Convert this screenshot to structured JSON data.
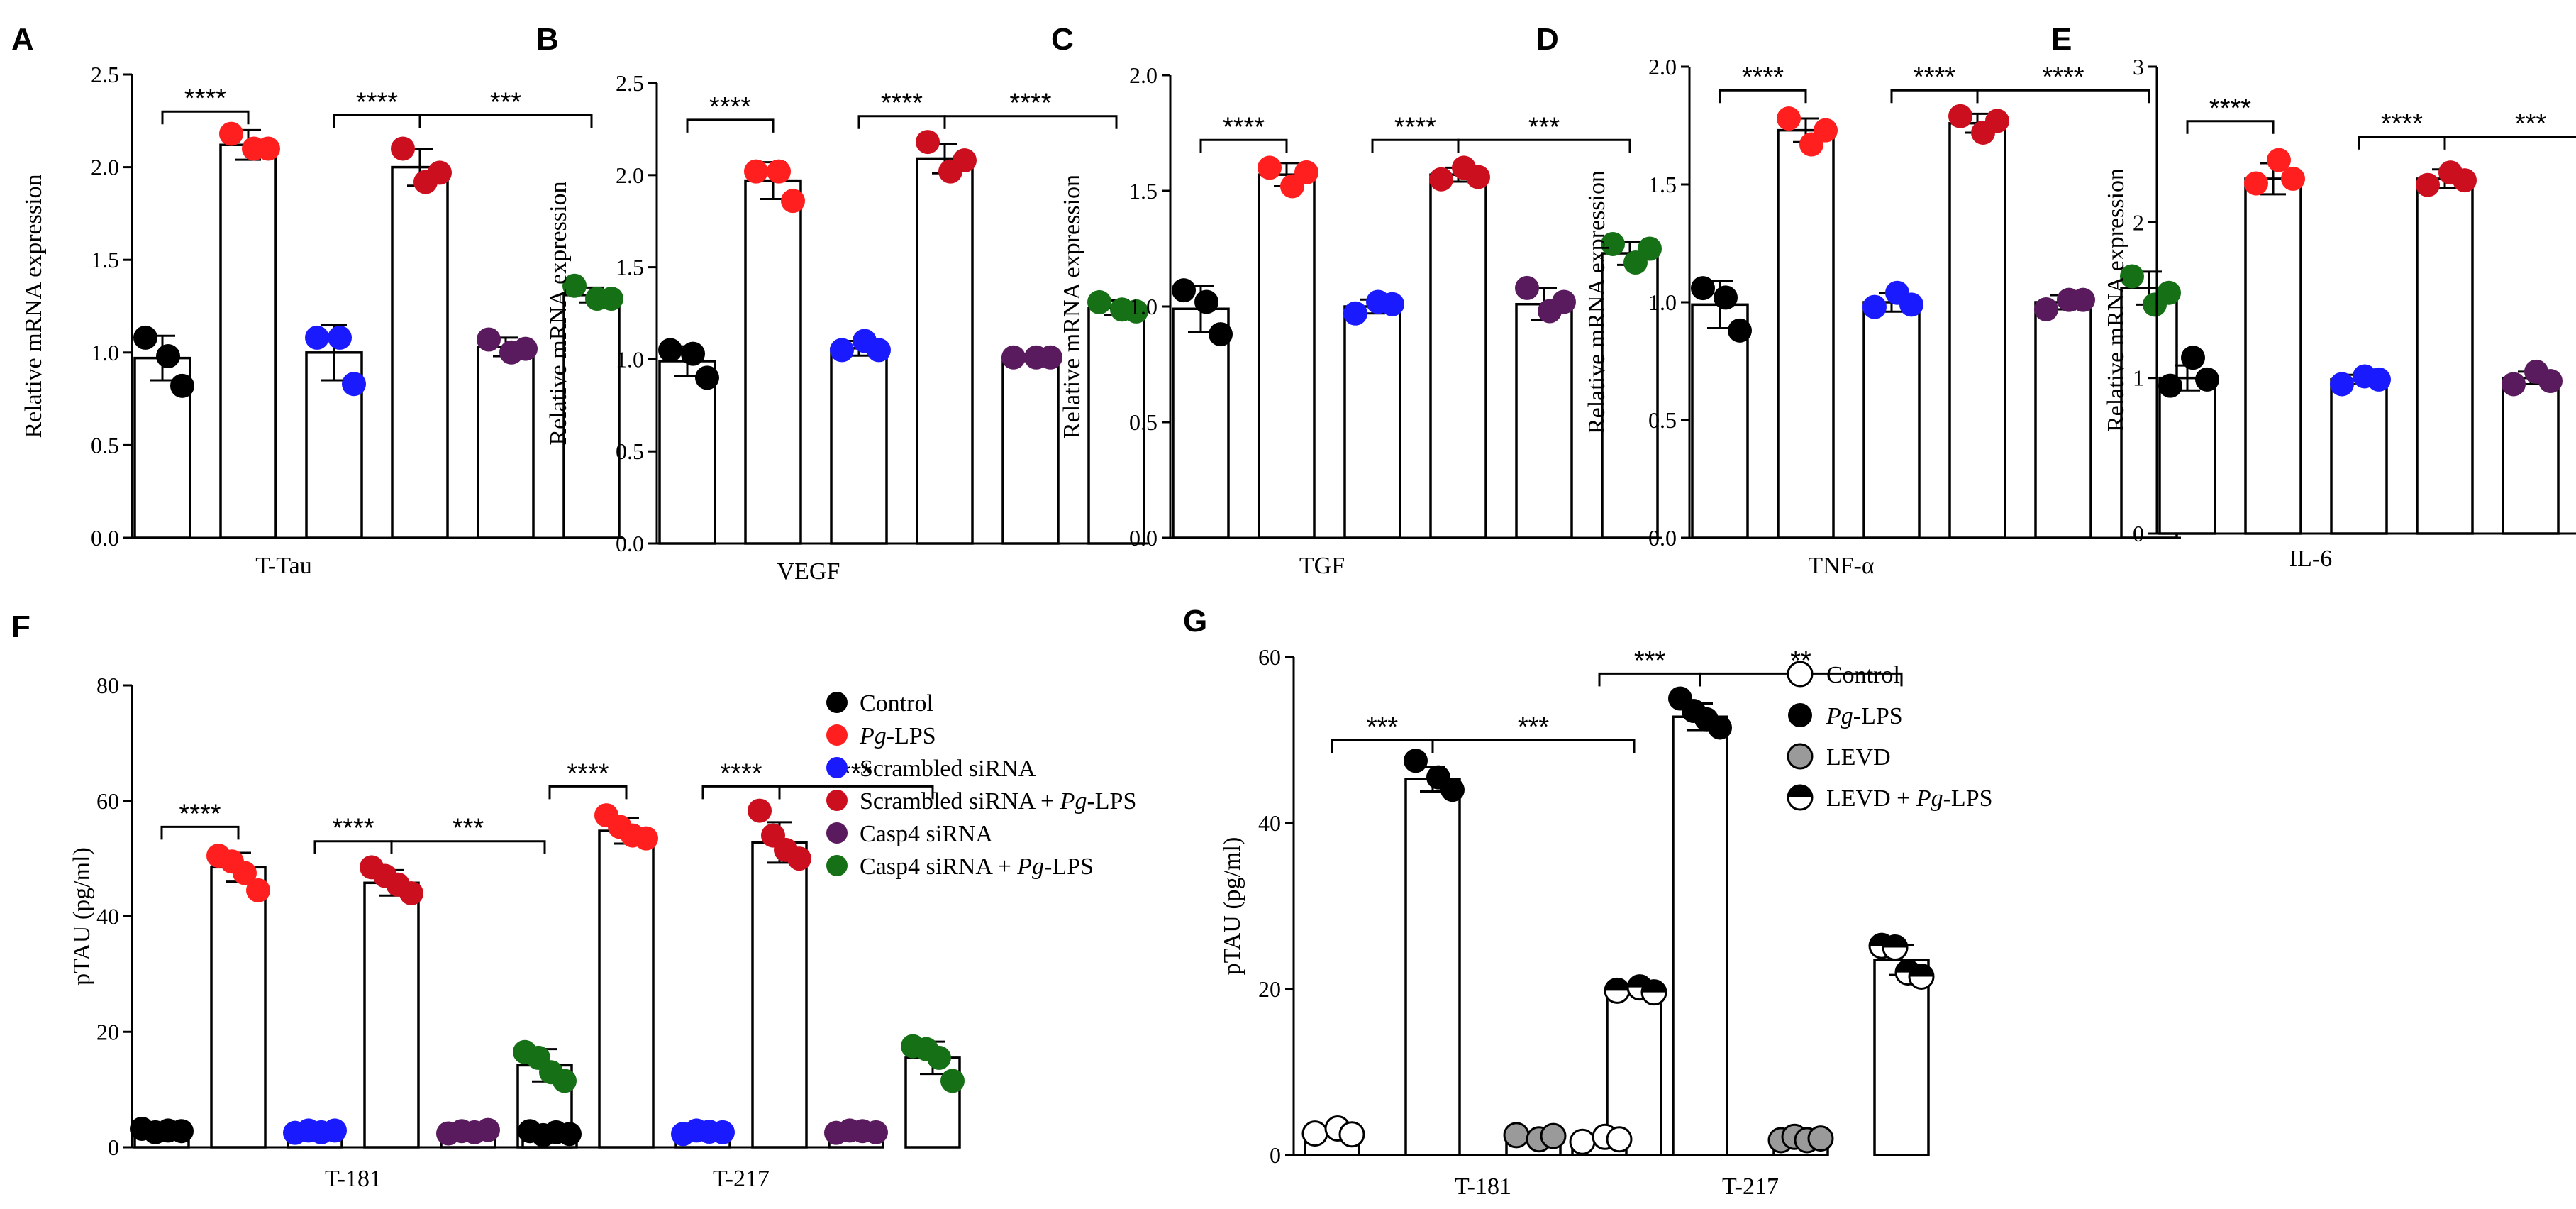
{
  "colors": {
    "control": "#000000",
    "pg_lps": "#ff1f1f",
    "scrambled": "#1a1aff",
    "scrambled_pg": "#cc0f1e",
    "casp4": "#5a1a5e",
    "casp4_pg": "#167016",
    "white": "#ffffff",
    "gray": "#9a9a9a"
  },
  "legend_f": [
    {
      "color": "control",
      "parts": [
        "Control"
      ]
    },
    {
      "color": "pg_lps",
      "parts": [
        "",
        "Pg",
        "-LPS"
      ]
    },
    {
      "color": "scrambled",
      "parts": [
        "Scrambled siRNA"
      ]
    },
    {
      "color": "scrambled_pg",
      "parts": [
        "Scrambled siRNA + ",
        "Pg",
        "-LPS"
      ]
    },
    {
      "color": "casp4",
      "parts": [
        "Casp4 siRNA"
      ]
    },
    {
      "color": "casp4_pg",
      "parts": [
        "Casp4 siRNA + ",
        "Pg",
        "-LPS"
      ]
    }
  ],
  "legend_g": [
    {
      "style": "white",
      "parts": [
        "Control"
      ]
    },
    {
      "style": "black",
      "parts": [
        "",
        "Pg",
        "-LPS"
      ]
    },
    {
      "style": "gray",
      "parts": [
        "LEVD"
      ]
    },
    {
      "style": "half",
      "parts": [
        "LEVD + ",
        "Pg",
        "-LPS"
      ]
    }
  ],
  "chart_data": [
    {
      "panel": "A",
      "type": "bar",
      "xlabel": "T-Tau",
      "ylabel": "Relative mRNA expression",
      "ylim": [
        0,
        2.5
      ],
      "yticks": [
        "0.0",
        "0.5",
        "1.0",
        "1.5",
        "2.0",
        "2.5"
      ],
      "groups": [
        "control",
        "pg_lps",
        "scrambled",
        "scrambled_pg",
        "casp4",
        "casp4_pg"
      ],
      "values": [
        0.97,
        2.12,
        1.0,
        2.0,
        1.03,
        1.31
      ],
      "errors": [
        0.12,
        0.08,
        0.15,
        0.1,
        0.05,
        0.04
      ],
      "points": [
        [
          1.08,
          0.98,
          0.82
        ],
        [
          2.18,
          2.1,
          2.1
        ],
        [
          1.08,
          1.08,
          0.83
        ],
        [
          2.1,
          1.92,
          1.97
        ],
        [
          1.07,
          1.0,
          1.02
        ],
        [
          1.36,
          1.29,
          1.29
        ]
      ],
      "sig": [
        {
          "from": 0,
          "to": 1,
          "label": "****",
          "y": 2.3
        },
        {
          "from": 2,
          "to": 3,
          "label": "****",
          "y": 2.28
        },
        {
          "from": 3,
          "to": 5,
          "label": "***",
          "y": 2.28
        }
      ]
    },
    {
      "panel": "B",
      "type": "bar",
      "xlabel": "VEGF",
      "ylabel": "Relative mRNA expression",
      "ylim": [
        0,
        2.5
      ],
      "yticks": [
        "0.0",
        "0.5",
        "1.0",
        "1.5",
        "2.0",
        "2.5"
      ],
      "groups": [
        "control",
        "pg_lps",
        "scrambled",
        "scrambled_pg",
        "casp4",
        "casp4_pg"
      ],
      "values": [
        0.99,
        1.97,
        1.06,
        2.09,
        1.01,
        1.28
      ],
      "errors": [
        0.08,
        0.1,
        0.04,
        0.08,
        0.02,
        0.04
      ],
      "points": [
        [
          1.05,
          1.03,
          0.9
        ],
        [
          2.02,
          2.02,
          1.86
        ],
        [
          1.05,
          1.1,
          1.05
        ],
        [
          2.18,
          2.02,
          2.08
        ],
        [
          1.01,
          1.01,
          1.01
        ],
        [
          1.31,
          1.27,
          1.26
        ]
      ],
      "sig": [
        {
          "from": 0,
          "to": 1,
          "label": "****",
          "y": 2.3
        },
        {
          "from": 2,
          "to": 3,
          "label": "****",
          "y": 2.32
        },
        {
          "from": 3,
          "to": 5,
          "label": "****",
          "y": 2.32
        }
      ]
    },
    {
      "panel": "C",
      "type": "bar",
      "xlabel": "TGF",
      "ylabel": "Relative mRNA expression",
      "ylim": [
        0,
        2.0
      ],
      "yticks": [
        "0.0",
        "0.5",
        "1.0",
        "1.5",
        "2.0"
      ],
      "groups": [
        "control",
        "pg_lps",
        "scrambled",
        "scrambled_pg",
        "casp4",
        "casp4_pg"
      ],
      "values": [
        0.99,
        1.57,
        1.0,
        1.57,
        1.01,
        1.23
      ],
      "errors": [
        0.1,
        0.05,
        0.03,
        0.03,
        0.07,
        0.05
      ],
      "points": [
        [
          1.07,
          1.02,
          0.88
        ],
        [
          1.6,
          1.52,
          1.58
        ],
        [
          0.97,
          1.02,
          1.01
        ],
        [
          1.55,
          1.6,
          1.56
        ],
        [
          1.08,
          0.98,
          1.02
        ],
        [
          1.27,
          1.19,
          1.25
        ]
      ],
      "sig": [
        {
          "from": 0,
          "to": 1,
          "label": "****",
          "y": 1.72
        },
        {
          "from": 2,
          "to": 3,
          "label": "****",
          "y": 1.72
        },
        {
          "from": 3,
          "to": 5,
          "label": "***",
          "y": 1.72
        }
      ]
    },
    {
      "panel": "D",
      "type": "bar",
      "xlabel": "TNF-α",
      "ylabel": "Relative mRNA expression",
      "ylim": [
        0,
        2.0
      ],
      "yticks": [
        "0.0",
        "0.5",
        "1.0",
        "1.5",
        "2.0"
      ],
      "groups": [
        "control",
        "pg_lps",
        "scrambled",
        "scrambled_pg",
        "casp4",
        "casp4_pg"
      ],
      "values": [
        0.99,
        1.73,
        1.0,
        1.76,
        1.0,
        1.06
      ],
      "errors": [
        0.1,
        0.05,
        0.04,
        0.04,
        0.03,
        0.07
      ],
      "points": [
        [
          1.06,
          1.02,
          0.88
        ],
        [
          1.78,
          1.67,
          1.73
        ],
        [
          0.98,
          1.04,
          0.99
        ],
        [
          1.79,
          1.72,
          1.77
        ],
        [
          0.97,
          1.01,
          1.01
        ],
        [
          1.11,
          0.99,
          1.04
        ]
      ],
      "sig": [
        {
          "from": 0,
          "to": 1,
          "label": "****",
          "y": 1.9
        },
        {
          "from": 2,
          "to": 3,
          "label": "****",
          "y": 1.9
        },
        {
          "from": 3,
          "to": 5,
          "label": "****",
          "y": 1.9
        }
      ]
    },
    {
      "panel": "E",
      "type": "bar",
      "xlabel": "IL-6",
      "ylabel": "Relative mRNA expression",
      "ylim": [
        0,
        3
      ],
      "yticks": [
        "0",
        "1",
        "2",
        "3"
      ],
      "groups": [
        "control",
        "pg_lps",
        "scrambled",
        "scrambled_pg",
        "casp4",
        "casp4_pg"
      ],
      "values": [
        1.0,
        2.28,
        0.99,
        2.28,
        1.0,
        1.15
      ],
      "errors": [
        0.08,
        0.1,
        0.03,
        0.06,
        0.04,
        0.06
      ],
      "points": [
        [
          0.95,
          1.13,
          0.99
        ],
        [
          2.25,
          2.4,
          2.28
        ],
        [
          0.96,
          1.01,
          0.99
        ],
        [
          2.24,
          2.32,
          2.27
        ],
        [
          0.96,
          1.04,
          0.98
        ],
        [
          1.18,
          1.07,
          1.18
        ]
      ],
      "sig": [
        {
          "from": 0,
          "to": 1,
          "label": "****",
          "y": 2.65
        },
        {
          "from": 2,
          "to": 3,
          "label": "****",
          "y": 2.55
        },
        {
          "from": 3,
          "to": 5,
          "label": "***",
          "y": 2.55
        }
      ]
    },
    {
      "panel": "F",
      "type": "bar",
      "xlabel": "",
      "ylabel": "pTAU (pg/ml)",
      "ylim": [
        0,
        80
      ],
      "yticks": [
        "0",
        "20",
        "40",
        "60",
        "80"
      ],
      "categories": [
        "T-181",
        "T-217"
      ],
      "groups": [
        "control",
        "pg_lps",
        "scrambled",
        "scrambled_pg",
        "casp4",
        "casp4_pg"
      ],
      "values": [
        [
          2.8,
          48.5,
          2.7,
          45.8,
          2.7,
          14.2
        ],
        [
          2.4,
          54.8,
          2.6,
          52.8,
          2.7,
          15.5
        ]
      ],
      "errors": [
        [
          0.4,
          2.5,
          0.3,
          2.2,
          0.3,
          2.8
        ],
        [
          0.4,
          2.2,
          0.3,
          3.5,
          0.3,
          2.8
        ]
      ],
      "points": [
        [
          [
            3.2,
            2.6,
            2.9,
            2.8
          ],
          [
            50.5,
            49.5,
            47.5,
            44.5
          ],
          [
            2.5,
            2.9,
            2.6,
            2.9
          ],
          [
            48.5,
            47,
            45.5,
            44
          ],
          [
            2.4,
            2.8,
            2.6,
            3.0
          ],
          [
            16.5,
            15.5,
            13,
            11.5
          ]
        ],
        [
          [
            2.8,
            2.1,
            2.6,
            2.3
          ],
          [
            57.5,
            55.5,
            54,
            53.5
          ],
          [
            2.3,
            2.9,
            2.7,
            2.6
          ],
          [
            58.3,
            54,
            51.5,
            50
          ],
          [
            2.5,
            2.9,
            2.8,
            2.6
          ],
          [
            17.5,
            17,
            15.5,
            11.5
          ]
        ]
      ],
      "sig": [
        {
          "cat": 0,
          "from": 0,
          "to": 1,
          "label": "****",
          "y": 55.5
        },
        {
          "cat": 0,
          "from": 2,
          "to": 3,
          "label": "****",
          "y": 53
        },
        {
          "cat": 0,
          "from": 3,
          "to": 5,
          "label": "***",
          "y": 53
        },
        {
          "cat": 1,
          "from": 0,
          "to": 1,
          "label": "****",
          "y": 62.5
        },
        {
          "cat": 1,
          "from": 2,
          "to": 3,
          "label": "****",
          "y": 62.5
        },
        {
          "cat": 1,
          "from": 3,
          "to": 5,
          "label": "***",
          "y": 62.5
        }
      ]
    },
    {
      "panel": "G",
      "type": "bar",
      "xlabel": "",
      "ylabel": "pTAU (pg/ml)",
      "ylim": [
        0,
        60
      ],
      "yticks": [
        "0",
        "20",
        "40",
        "60"
      ],
      "categories": [
        "T-181",
        "T-217"
      ],
      "groups": [
        "white",
        "black",
        "gray",
        "half"
      ],
      "values": [
        [
          2.8,
          45.3,
          2.2,
          19.8
        ],
        [
          1.9,
          52.8,
          1.9,
          23.5
        ]
      ],
      "errors": [
        [
          0.5,
          1.5,
          0.4,
          0.5
        ],
        [
          0.4,
          1.6,
          0.3,
          1.8
        ]
      ],
      "points": [
        [
          [
            2.6,
            3.2,
            2.5
          ],
          [
            47.5,
            45.5,
            44
          ],
          [
            2.4,
            1.9,
            2.3
          ],
          [
            19.8,
            20.2,
            19.6
          ]
        ],
        [
          [
            1.6,
            2.2,
            1.9
          ],
          [
            55,
            53.5,
            52.5,
            51.5
          ],
          [
            1.8,
            2.2,
            1.8,
            2.0
          ],
          [
            25.2,
            25,
            22,
            21.5
          ]
        ]
      ],
      "sig": [
        {
          "cat": 0,
          "from": 0,
          "to": 1,
          "label": "***",
          "y": 50
        },
        {
          "cat": 0,
          "from": 1,
          "to": 3,
          "label": "***",
          "y": 50
        },
        {
          "cat": 1,
          "from": 0,
          "to": 1,
          "label": "***",
          "y": 58
        },
        {
          "cat": 1,
          "from": 1,
          "to": 3,
          "label": "**",
          "y": 58
        }
      ]
    }
  ]
}
